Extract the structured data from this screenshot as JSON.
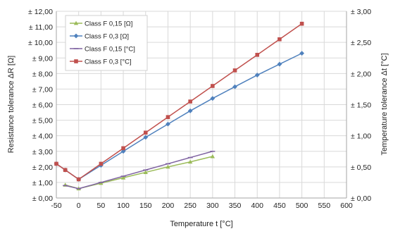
{
  "chart_data": {
    "type": "line",
    "xlabel": "Temperature t [°C]",
    "ylabel_left": "Resistance tolerance ΔR [Ω]",
    "ylabel_right": "Temperature tolerance Δt [°C]",
    "xlim": [
      -50,
      600
    ],
    "ylim_left": [
      0,
      12
    ],
    "ylim_right": [
      0,
      3
    ],
    "grid": true,
    "legend_position": "top-left",
    "x_ticks": [
      "-50",
      "0",
      "50",
      "100",
      "150",
      "200",
      "250",
      "300",
      "350",
      "400",
      "450",
      "500",
      "550",
      "600"
    ],
    "y_left_ticks": [
      "± 0,00",
      "± 1,00",
      "± 2,00",
      "± 3,00",
      "± 4,00",
      "± 5,00",
      "± 6,00",
      "± 7,00",
      "± 8,00",
      "± 9,00",
      "± 10,00",
      "± 11,00",
      "± 12,00"
    ],
    "y_right_ticks": [
      "± 0,00",
      "± 0,50",
      "± 1,00",
      "± 1,50",
      "± 2,00",
      "± 2,50",
      "± 3,00"
    ],
    "series": [
      {
        "name": "Class F 0,15 [Ω]",
        "axis": "left",
        "color": "#9bbb59",
        "marker": "triangle",
        "x": [
          -30,
          0,
          50,
          100,
          150,
          200,
          250,
          300
        ],
        "y": [
          0.84,
          0.6,
          0.95,
          1.3,
          1.65,
          2.0,
          2.32,
          2.67
        ]
      },
      {
        "name": "Class F 0,3 [Ω]",
        "axis": "left",
        "color": "#4f81bd",
        "marker": "diamond",
        "x": [
          -50,
          -30,
          0,
          50,
          100,
          150,
          200,
          250,
          300,
          350,
          400,
          450,
          500
        ],
        "y": [
          2.2,
          1.8,
          1.2,
          2.1,
          3.0,
          3.9,
          4.75,
          5.6,
          6.4,
          7.15,
          7.9,
          8.6,
          9.3
        ]
      },
      {
        "name": "Class F 0,15 [°C]",
        "axis": "right",
        "color": "#8064a2",
        "marker": "dash",
        "x": [
          -30,
          0,
          50,
          100,
          150,
          200,
          250,
          300
        ],
        "y": [
          0.2,
          0.15,
          0.25,
          0.35,
          0.45,
          0.55,
          0.65,
          0.75
        ]
      },
      {
        "name": "Class F 0,3 [°C]",
        "axis": "right",
        "color": "#c0504d",
        "marker": "square",
        "x": [
          -50,
          -30,
          0,
          50,
          100,
          150,
          200,
          250,
          300,
          350,
          400,
          450,
          500
        ],
        "y": [
          0.55,
          0.45,
          0.3,
          0.55,
          0.8,
          1.05,
          1.3,
          1.55,
          1.8,
          2.05,
          2.3,
          2.55,
          2.8
        ]
      }
    ]
  }
}
